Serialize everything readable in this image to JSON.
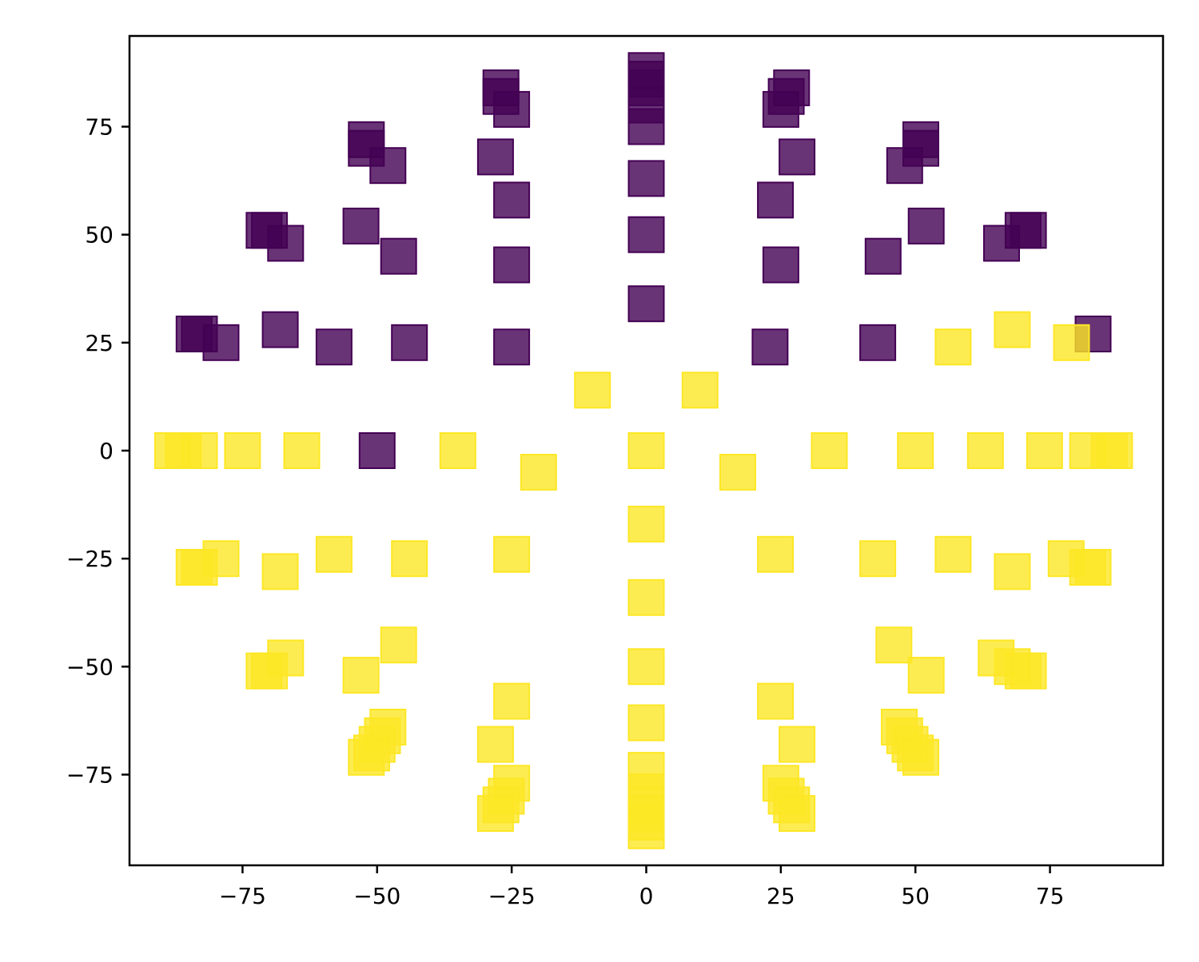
{
  "chart_data": {
    "type": "scatter",
    "title": "",
    "xlabel": "",
    "ylabel": "",
    "xlim": [
      -96,
      96
    ],
    "ylim": [
      -96,
      96
    ],
    "grid": false,
    "marker": "square",
    "x_ticks": [
      {
        "value": -75,
        "label": "−75"
      },
      {
        "value": -50,
        "label": "−50"
      },
      {
        "value": -25,
        "label": "−25"
      },
      {
        "value": 0,
        "label": "0"
      },
      {
        "value": 25,
        "label": "25"
      },
      {
        "value": 50,
        "label": "50"
      },
      {
        "value": 75,
        "label": "75"
      }
    ],
    "y_ticks": [
      {
        "value": 75,
        "label": "75"
      },
      {
        "value": 50,
        "label": "50"
      },
      {
        "value": 25,
        "label": "25"
      },
      {
        "value": 0,
        "label": "0"
      },
      {
        "value": -25,
        "label": "−25"
      },
      {
        "value": -50,
        "label": "−50"
      },
      {
        "value": -75,
        "label": "−75"
      }
    ],
    "series": [
      {
        "color": "#440154",
        "points": [
          [
            0,
            88
          ],
          [
            0,
            86
          ],
          [
            0,
            84
          ],
          [
            0,
            80
          ],
          [
            0,
            75
          ],
          [
            0,
            63
          ],
          [
            0,
            50
          ],
          [
            0,
            34
          ],
          [
            -27,
            84
          ],
          [
            -27,
            82
          ],
          [
            -25,
            79
          ],
          [
            -28,
            68
          ],
          [
            -25,
            58
          ],
          [
            -25,
            43
          ],
          [
            -25,
            24
          ],
          [
            27,
            84
          ],
          [
            26,
            82
          ],
          [
            25,
            79
          ],
          [
            28,
            68
          ],
          [
            24,
            58
          ],
          [
            25,
            43
          ],
          [
            23,
            24
          ],
          [
            -52,
            72
          ],
          [
            -52,
            70
          ],
          [
            -48,
            66
          ],
          [
            -53,
            52
          ],
          [
            -46,
            45
          ],
          [
            -44,
            25
          ],
          [
            -58,
            24
          ],
          [
            -50,
            0
          ],
          [
            51,
            72
          ],
          [
            51,
            70
          ],
          [
            48,
            66
          ],
          [
            52,
            52
          ],
          [
            44,
            45
          ],
          [
            43,
            25
          ],
          [
            -71,
            51
          ],
          [
            -70,
            51
          ],
          [
            -67,
            48
          ],
          [
            -68,
            28
          ],
          [
            -79,
            25
          ],
          [
            -84,
            27
          ],
          [
            -83,
            27
          ],
          [
            71,
            51
          ],
          [
            70,
            51
          ],
          [
            66,
            48
          ],
          [
            83,
            27
          ]
        ]
      },
      {
        "color": "#fde725",
        "points": [
          [
            -88,
            0
          ],
          [
            -86,
            0
          ],
          [
            -83,
            0
          ],
          [
            -75,
            0
          ],
          [
            -64,
            0
          ],
          [
            -35,
            0
          ],
          [
            -20,
            -5
          ],
          [
            -10,
            14
          ],
          [
            0,
            0
          ],
          [
            10,
            14
          ],
          [
            17,
            -5
          ],
          [
            34,
            0
          ],
          [
            50,
            0
          ],
          [
            63,
            0
          ],
          [
            74,
            0
          ],
          [
            82,
            0
          ],
          [
            86,
            0
          ],
          [
            87,
            0
          ],
          [
            57,
            24
          ],
          [
            68,
            28
          ],
          [
            79,
            25
          ],
          [
            -79,
            -25
          ],
          [
            -84,
            -27
          ],
          [
            -83,
            -27
          ],
          [
            -68,
            -28
          ],
          [
            -58,
            -24
          ],
          [
            -44,
            -25
          ],
          [
            -25,
            -24
          ],
          [
            0,
            -17
          ],
          [
            0,
            -34
          ],
          [
            0,
            -50
          ],
          [
            0,
            -63
          ],
          [
            0,
            -74
          ],
          [
            0,
            -79
          ],
          [
            0,
            -82
          ],
          [
            0,
            -84
          ],
          [
            0,
            -86
          ],
          [
            0,
            -88
          ],
          [
            24,
            -24
          ],
          [
            43,
            -25
          ],
          [
            57,
            -24
          ],
          [
            68,
            -28
          ],
          [
            78,
            -25
          ],
          [
            82,
            -27
          ],
          [
            83,
            -27
          ],
          [
            -67,
            -48
          ],
          [
            -70,
            -51
          ],
          [
            -71,
            -51
          ],
          [
            -53,
            -52
          ],
          [
            -46,
            -45
          ],
          [
            46,
            -45
          ],
          [
            52,
            -52
          ],
          [
            65,
            -48
          ],
          [
            68,
            -50
          ],
          [
            70,
            -51
          ],
          [
            71,
            -51
          ],
          [
            -48,
            -64
          ],
          [
            -49,
            -66
          ],
          [
            -50,
            -68
          ],
          [
            -51,
            -70
          ],
          [
            -52,
            -71
          ],
          [
            -25,
            -58
          ],
          [
            -28,
            -68
          ],
          [
            -25,
            -77
          ],
          [
            -26,
            -80
          ],
          [
            -27,
            -82
          ],
          [
            -28,
            -84
          ],
          [
            24,
            -58
          ],
          [
            28,
            -68
          ],
          [
            25,
            -77
          ],
          [
            26,
            -80
          ],
          [
            27,
            -82
          ],
          [
            28,
            -84
          ],
          [
            47,
            -64
          ],
          [
            48,
            -66
          ],
          [
            49,
            -68
          ],
          [
            50,
            -70
          ],
          [
            51,
            -71
          ]
        ]
      }
    ]
  }
}
